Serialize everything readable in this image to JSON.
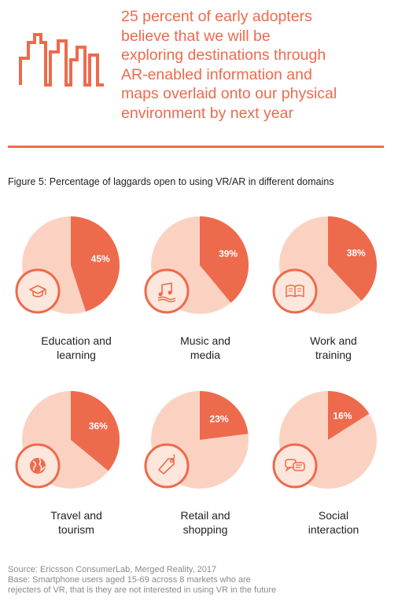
{
  "headline": {
    "lines": [
      "25 percent of early adopters",
      "believe that we will be",
      "exploring destinations through",
      "AR-enabled information and",
      "maps overlaid onto our physical",
      "environment by next year"
    ]
  },
  "colors": {
    "accent": "#ee6a4c",
    "slice_rest": "#fbd2c2",
    "icon_circle_fill": "#fde6dc",
    "icon_color": "#ee6a4c"
  },
  "chart_data": {
    "type": "pie",
    "title": "Figure 5: Percentage of laggards open to using VR/AR in different domains",
    "charts": [
      {
        "category": "Education and learning",
        "label_lines": [
          "Education and",
          "learning"
        ],
        "value": 45,
        "value_label": "45%",
        "icon": "graduation-cap-icon"
      },
      {
        "category": "Music and media",
        "label_lines": [
          "Music and",
          "media"
        ],
        "value": 39,
        "value_label": "39%",
        "icon": "music-note-icon"
      },
      {
        "category": "Work and training",
        "label_lines": [
          "Work and",
          "training"
        ],
        "value": 38,
        "value_label": "38%",
        "icon": "book-icon"
      },
      {
        "category": "Travel and tourism",
        "label_lines": [
          "Travel and",
          "tourism"
        ],
        "value": 36,
        "value_label": "36%",
        "icon": "globe-icon"
      },
      {
        "category": "Retail and shopping",
        "label_lines": [
          "Retail and",
          "shopping"
        ],
        "value": 23,
        "value_label": "23%",
        "icon": "price-tag-icon"
      },
      {
        "category": "Social interaction",
        "label_lines": [
          "Social",
          "interaction"
        ],
        "value": 16,
        "value_label": "16%",
        "icon": "chat-bubbles-icon"
      }
    ]
  },
  "source": {
    "line1": "Source: Ericsson ConsumerLab, Merged Reality, 2017",
    "line2": "Base: Smartphone users aged 15-69 across 8 markets who are",
    "line3": "rejecters of VR, that is they are not interested in using VR in the future"
  }
}
